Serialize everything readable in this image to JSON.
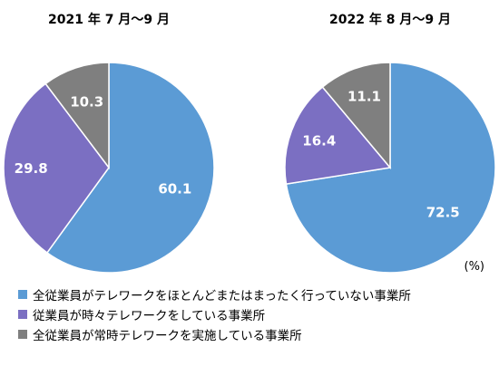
{
  "chart_data": [
    {
      "type": "pie",
      "title": "2021 年 7 月～9 月",
      "categories": [
        "全従業員がテレワークをほとんどまたはまったく行っていない事業所",
        "従業員が時々テレワークをしている事業所",
        "全従業員が常時テレワークを実施している事業所"
      ],
      "values": [
        60.1,
        29.8,
        10.3
      ],
      "start": "12 o'clock",
      "direction": "clockwise"
    },
    {
      "type": "pie",
      "title": "2022 年 8 月～9 月",
      "categories": [
        "全従業員がテレワークをほとんどまたはまったく行っていない事業所",
        "従業員が時々テレワークをしている事業所",
        "全従業員が常時テレワークを実施している事業所"
      ],
      "values": [
        72.5,
        16.4,
        11.1
      ],
      "start": "12 o'clock",
      "direction": "clockwise"
    }
  ],
  "unit": "(%)",
  "colors": [
    "#5B9BD5",
    "#7B6FC2",
    "#7F7F7F"
  ],
  "legend": {
    "position": "bottom",
    "items": [
      {
        "label": "全従業員がテレワークをほとんどまたはまったく行っていない事業所",
        "color": "#5B9BD5"
      },
      {
        "label": "従業員が時々テレワークをしている事業所",
        "color": "#7B6FC2"
      },
      {
        "label": "全従業員が常時テレワークを実施している事業所",
        "color": "#7F7F7F"
      }
    ]
  }
}
